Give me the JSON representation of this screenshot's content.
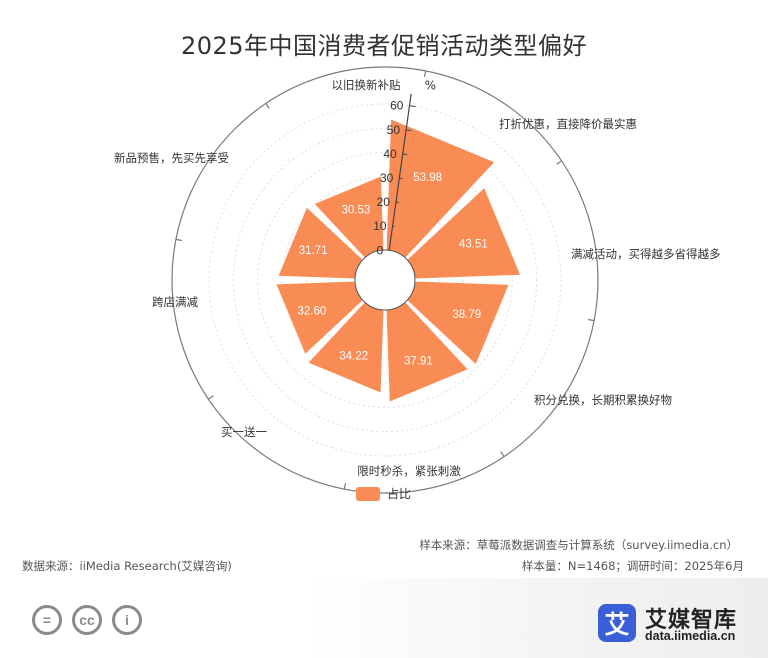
{
  "page": {
    "title": "2025年中国消费者促销活动类型偏好"
  },
  "chart_data": {
    "type": "polar-bar",
    "title": "2025年中国消费者促销活动类型偏好",
    "unit": "%",
    "radial_axis": {
      "min": 0,
      "max": 60,
      "ticks": [
        "0",
        "10",
        "20",
        "30",
        "40",
        "50",
        "60"
      ]
    },
    "series_name": "占比",
    "series_color": "#f98c55",
    "categories": [
      "以旧换新补贴",
      "打折优惠，直接降价最实惠",
      "满减活动，买得越多省得越多",
      "积分兑换，长期积累换好物",
      "限时秒杀，紧张刺激",
      "买一送一",
      "跨店满减",
      "新品预售，先买先享受"
    ],
    "values": [
      53.98,
      43.51,
      38.79,
      37.91,
      34.22,
      32.6,
      31.71,
      30.53
    ],
    "value_labels": [
      "53.98",
      "43.51",
      "38.79",
      "37.91",
      "34.22",
      "32.60",
      "31.71",
      "30.53"
    ]
  },
  "footer": {
    "sample_source": "样本来源：草莓派数据调查与计算系统（survey.iimedia.cn）",
    "data_source": "数据来源：iiMedia Research(艾媒咨询)",
    "sample_info": "样本量：N=1468；调研时间：2025年6月"
  },
  "license_icons": [
    "=",
    "cc",
    "i"
  ],
  "brand": {
    "logo_char": "艾",
    "name": "艾媒智库",
    "url": "data.iimedia.cn"
  }
}
